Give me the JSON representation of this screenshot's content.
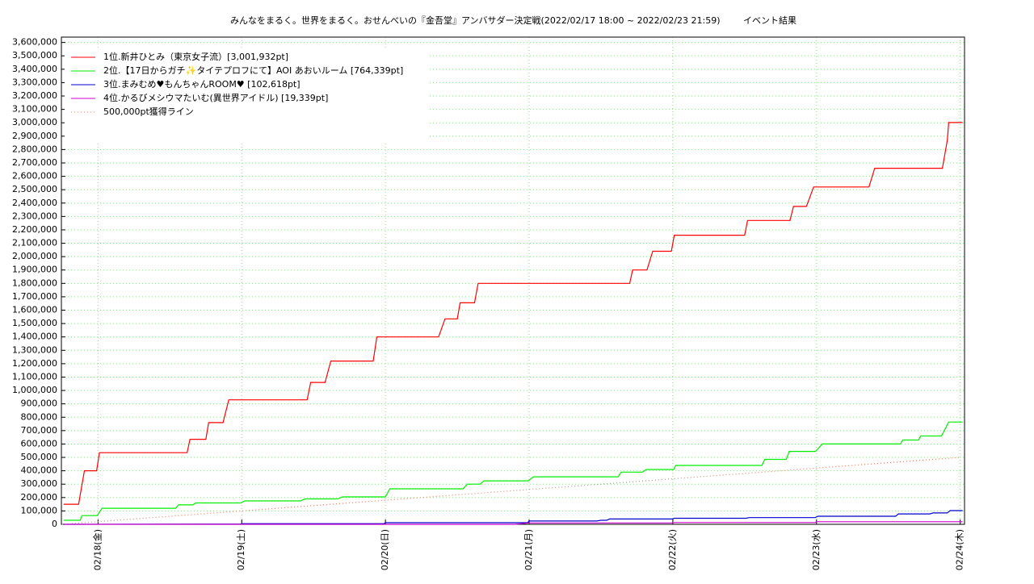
{
  "chart_data": {
    "type": "line",
    "title": "みんなをまるく。世界をまるく。おせんべいの『金吾堂』アンバサダー決定戦(2022/02/17 18:00 ~ 2022/02/23 21:59)",
    "subtitle": "イベント結果",
    "xlim": [
      17.745,
      24.03
    ],
    "xticks": [
      {
        "value": 18,
        "label": "02/18(金)"
      },
      {
        "value": 19,
        "label": "02/19(土)"
      },
      {
        "value": 20,
        "label": "02/20(日)"
      },
      {
        "value": 21,
        "label": "02/21(月)"
      },
      {
        "value": 22,
        "label": "02/22(火)"
      },
      {
        "value": 23,
        "label": "02/23(水)"
      },
      {
        "value": 24,
        "label": "02/24(木)"
      }
    ],
    "ylim": [
      0,
      3640000
    ],
    "yticks": [
      0,
      {
        "value": 100000,
        "label": "100,000"
      },
      {
        "value": 200000,
        "label": "200,000"
      },
      {
        "value": 300000,
        "label": "300,000"
      },
      {
        "value": 400000,
        "label": "400,000"
      },
      {
        "value": 500000,
        "label": "500,000"
      },
      {
        "value": 600000,
        "label": "600,000"
      },
      {
        "value": 700000,
        "label": "700,000"
      },
      {
        "value": 800000,
        "label": "800,000"
      },
      {
        "value": 900000,
        "label": "900,000"
      },
      {
        "value": 1000000,
        "label": "1,000,000"
      },
      {
        "value": 1100000,
        "label": "1,100,000"
      },
      {
        "value": 1200000,
        "label": "1,200,000"
      },
      {
        "value": 1300000,
        "label": "1,300,000"
      },
      {
        "value": 1400000,
        "label": "1,400,000"
      },
      {
        "value": 1500000,
        "label": "1,500,000"
      },
      {
        "value": 1600000,
        "label": "1,600,000"
      },
      {
        "value": 1700000,
        "label": "1,700,000"
      },
      {
        "value": 1800000,
        "label": "1,800,000"
      },
      {
        "value": 1900000,
        "label": "1,900,000"
      },
      {
        "value": 2000000,
        "label": "2,000,000"
      },
      {
        "value": 2100000,
        "label": "2,100,000"
      },
      {
        "value": 2200000,
        "label": "2,200,000"
      },
      {
        "value": 2300000,
        "label": "2,300,000"
      },
      {
        "value": 2400000,
        "label": "2,400,000"
      },
      {
        "value": 2500000,
        "label": "2,500,000"
      },
      {
        "value": 2600000,
        "label": "2,600,000"
      },
      {
        "value": 2700000,
        "label": "2,700,000"
      },
      {
        "value": 2800000,
        "label": "2,800,000"
      },
      {
        "value": 2900000,
        "label": "2,900,000"
      },
      {
        "value": 3000000,
        "label": "3,000,000"
      },
      {
        "value": 3100000,
        "label": "3,100,000"
      },
      {
        "value": 3200000,
        "label": "3,200,000"
      },
      {
        "value": 3300000,
        "label": "3,300,000"
      },
      {
        "value": 3400000,
        "label": "3,400,000"
      },
      {
        "value": 3500000,
        "label": "3,500,000"
      },
      {
        "value": 3600000,
        "label": "3,600,000"
      }
    ],
    "grid": true,
    "legend": "top-left",
    "series": [
      {
        "name": "1位.新井ひとみ（東京女子流）[3,001,932pt]",
        "color": "#ff0000",
        "x": [
          17.76,
          17.865,
          17.905,
          17.99,
          18.01,
          18.62,
          18.64,
          18.75,
          18.77,
          18.87,
          18.91,
          19.455,
          19.48,
          19.58,
          19.62,
          19.915,
          19.94,
          20.37,
          20.415,
          20.5,
          20.52,
          20.62,
          20.645,
          21.7,
          21.72,
          21.82,
          21.86,
          21.99,
          22.01,
          22.5,
          22.52,
          22.815,
          22.84,
          22.93,
          22.98,
          23.365,
          23.405,
          23.876,
          23.91,
          23.92,
          24.017
        ],
        "values": [
          150000,
          150000,
          400000,
          400000,
          535000,
          535000,
          635000,
          635000,
          760000,
          760000,
          930000,
          930000,
          1060000,
          1060000,
          1220000,
          1220000,
          1400000,
          1400000,
          1535000,
          1535000,
          1655000,
          1655000,
          1800000,
          1800000,
          1900000,
          1900000,
          2040000,
          2040000,
          2160000,
          2160000,
          2270000,
          2270000,
          2375000,
          2375000,
          2520000,
          2520000,
          2660000,
          2660000,
          2870000,
          3001932,
          3001932
        ]
      },
      {
        "name": "2位.【17日からガチ✨タイテプロフにて】AOI あおいルーム [764,339pt]",
        "color": "#00ee00",
        "x": [
          17.76,
          17.876,
          17.888,
          17.994,
          18.028,
          18.54,
          18.56,
          18.66,
          18.68,
          18.994,
          19.02,
          19.41,
          19.44,
          19.67,
          19.7,
          20.0,
          20.03,
          20.54,
          20.57,
          20.66,
          20.685,
          20.994,
          21.03,
          21.62,
          21.64,
          21.79,
          21.815,
          22.006,
          22.02,
          22.62,
          22.64,
          22.79,
          22.81,
          22.994,
          23.04,
          23.584,
          23.6,
          23.71,
          23.725,
          23.87,
          23.92,
          24.017
        ],
        "values": [
          30000,
          30000,
          65000,
          65000,
          120000,
          120000,
          145000,
          145000,
          160000,
          160000,
          175000,
          175000,
          190000,
          190000,
          205000,
          205000,
          265000,
          265000,
          300000,
          300000,
          325000,
          325000,
          355000,
          355000,
          390000,
          390000,
          410000,
          410000,
          440000,
          440000,
          485000,
          485000,
          545000,
          545000,
          600000,
          600000,
          630000,
          630000,
          660000,
          660000,
          764339,
          764339
        ]
      },
      {
        "name": "3位.まみむめ♥もんちゃんROOM♥ [102,618pt]",
        "color": "#0000cc",
        "x": [
          17.76,
          18.99,
          19.0,
          19.99,
          20.0,
          20.99,
          21.0,
          21.47,
          21.5,
          21.54,
          21.56,
          22.0,
          22.01,
          22.51,
          22.53,
          22.99,
          23.01,
          23.55,
          23.57,
          23.79,
          23.81,
          23.91,
          23.93,
          24.017
        ],
        "values": [
          0,
          2000,
          5000,
          5000,
          12000,
          12000,
          25000,
          25000,
          30000,
          30000,
          40000,
          40000,
          45000,
          45000,
          50000,
          50000,
          60000,
          60000,
          78000,
          78000,
          85000,
          85000,
          102618,
          102618
        ]
      },
      {
        "name": "4位.かるびメシウマたいむ(異世界アイドル) [19,339pt]",
        "color": "#cc00cc",
        "x": [
          17.76,
          20.9,
          21.0,
          22.0,
          22.01,
          22.99,
          23.0,
          24.017
        ],
        "values": [
          0,
          0,
          10000,
          10000,
          13000,
          13000,
          19339,
          19339
        ]
      },
      {
        "name": "500,000pt獲得ライン",
        "color": "#e08070",
        "style": "dotted",
        "x": [
          17.75,
          24.0
        ],
        "values": [
          0,
          500000
        ]
      }
    ]
  }
}
